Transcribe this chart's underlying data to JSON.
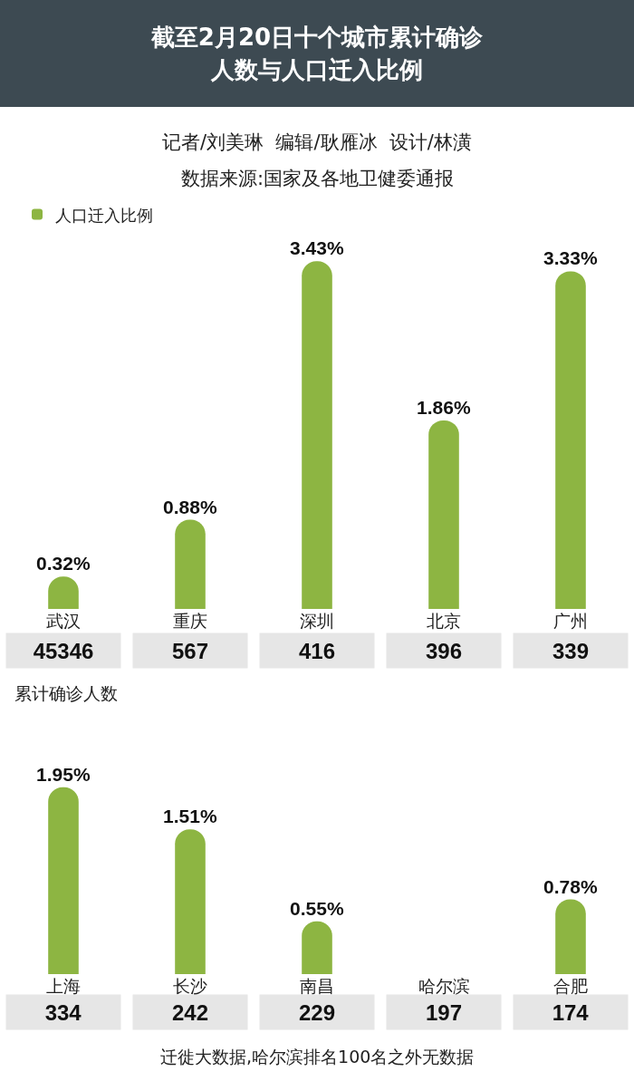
{
  "chart_data": [
    {
      "type": "bar",
      "title": "截至2月20日十个城市累计确诊人数与人口迁入比例",
      "subtitle": "记者/刘美琳  编辑/耿雁冰  设计/林潢",
      "categories": [
        "武汉",
        "重庆",
        "深圳",
        "北京",
        "广州"
      ],
      "series": [
        {
          "name": "人口迁入比例",
          "color": "#8db542",
          "values": [
            0.32,
            0.88,
            3.43,
            1.86,
            3.33
          ],
          "value_labels": [
            "0.32%",
            "0.88%",
            "3.43%",
            "1.86%",
            "3.33%"
          ]
        }
      ],
      "legend": "top left",
      "grid": false,
      "tick_labels": "x",
      "annotations": [
        "数据来源:国家及各地卫健委通报",
        "45346",
        "567",
        "416",
        "396",
        "339",
        "累计确诊人数"
      ]
    },
    {
      "type": "bar",
      "categories": [
        "上海",
        "长沙",
        "南昌",
        "哈尔滨",
        "合肥"
      ],
      "series": [
        {
          "color": "#8db542",
          "values": [
            1.95,
            1.51,
            0.55,
            null,
            0.78
          ],
          "value_labels": [
            "1.95%",
            "1.51%",
            "0.55%",
            null,
            "0.78%"
          ]
        }
      ],
      "legend": false,
      "grid": false,
      "tick_labels": "x",
      "annotations": [
        "334",
        "242",
        "229",
        "197",
        "174",
        "迁徙大数据,哈尔滨排名100名之外无数据"
      ]
    }
  ]
}
